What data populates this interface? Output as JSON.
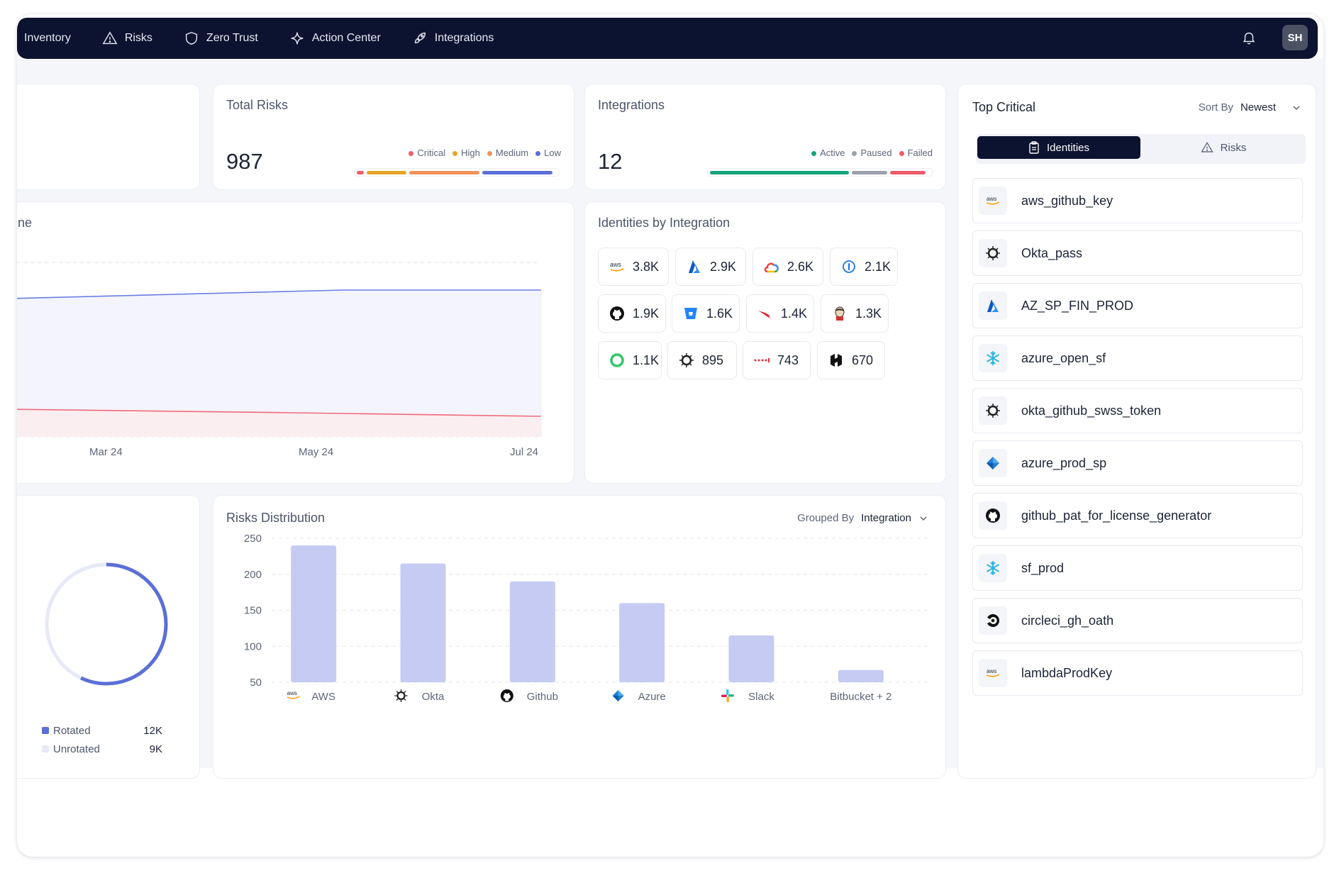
{
  "nav": {
    "items": [
      {
        "label": "Inventory",
        "icon": "none"
      },
      {
        "label": "Risks",
        "icon": "warning-triangle-icon"
      },
      {
        "label": "Zero Trust",
        "icon": "shield-icon"
      },
      {
        "label": "Action Center",
        "icon": "sparkle-icon"
      },
      {
        "label": "Integrations",
        "icon": "rocket-icon"
      }
    ],
    "avatar_initials": "SH",
    "bell_icon": "bell-icon"
  },
  "total_risks": {
    "title": "Total Risks",
    "value": "987",
    "legend": [
      "Critical",
      "High",
      "Medium",
      "Low"
    ],
    "colors": [
      "#ef5b6b",
      "#e4a526",
      "#f0935a",
      "#5b6fd6"
    ]
  },
  "integrations_card": {
    "title": "Integrations",
    "value": "12",
    "legend": [
      "Active",
      "Paused",
      "Failed"
    ],
    "colors": [
      "#14a37f",
      "#9aa0ac",
      "#ef5b6b"
    ]
  },
  "timeline": {
    "title_fragment": "ne",
    "x_labels": [
      "Mar 24",
      "May 24",
      "Jul 24"
    ]
  },
  "identities_by_integration": {
    "title": "Identities by Integration",
    "items": [
      {
        "icon": "aws-icon",
        "value": "3.8K"
      },
      {
        "icon": "azure-icon",
        "value": "2.9K"
      },
      {
        "icon": "google-cloud-icon",
        "value": "2.6K"
      },
      {
        "icon": "onepassword-icon",
        "value": "2.1K"
      },
      {
        "icon": "github-icon",
        "value": "1.9K"
      },
      {
        "icon": "bitbucket-icon",
        "value": "1.6K"
      },
      {
        "icon": "crowdstrike-icon",
        "value": "1.4K"
      },
      {
        "icon": "jenkins-icon",
        "value": "1.3K"
      },
      {
        "icon": "circle-ring-icon",
        "value": "1.1K"
      },
      {
        "icon": "okta-icon",
        "value": "895"
      },
      {
        "icon": "dots-icon",
        "value": "743"
      },
      {
        "icon": "hashicorp-icon",
        "value": "670"
      }
    ]
  },
  "rotation": {
    "legend": [
      {
        "label": "Rotated",
        "value": "12K",
        "color": "#5b6fd6"
      },
      {
        "label": "Unrotated",
        "value": "9K",
        "color": "#e6e9f7"
      }
    ],
    "rotated_fraction": 0.57
  },
  "risks_distribution": {
    "title": "Risks Distribution",
    "grouped_by_label": "Grouped By",
    "grouped_by_value": "Integration"
  },
  "chart_data": {
    "type": "bar",
    "title": "Risks Distribution",
    "categories": [
      "AWS",
      "Okta",
      "Github",
      "Azure",
      "Slack",
      "Bitbucket + 2"
    ],
    "category_icons": [
      "aws-icon",
      "okta-icon",
      "github-icon",
      "azure-icon",
      "slack-icon",
      "none"
    ],
    "values": [
      240,
      215,
      190,
      160,
      115,
      67
    ],
    "yticks": [
      50,
      100,
      150,
      200,
      250
    ],
    "ylim": [
      50,
      250
    ],
    "grid": true,
    "bar_color": "#c5cbf3"
  },
  "top_critical": {
    "title": "Top Critical",
    "sort_label": "Sort By",
    "sort_value": "Newest",
    "tabs": [
      {
        "label": "Identities",
        "icon": "clipboard-icon",
        "active": true
      },
      {
        "label": "Risks",
        "icon": "warning-triangle-icon",
        "active": false
      }
    ],
    "items": [
      {
        "name": "aws_github_key",
        "icon": "aws-icon"
      },
      {
        "name": "Okta_pass",
        "icon": "okta-icon"
      },
      {
        "name": "AZ_SP_FIN_PROD",
        "icon": "azure-icon"
      },
      {
        "name": "azure_open_sf",
        "icon": "snowflake-icon"
      },
      {
        "name": "okta_github_swss_token",
        "icon": "okta-icon"
      },
      {
        "name": "azure_prod_sp",
        "icon": "azure-devops-icon"
      },
      {
        "name": "github_pat_for_license_generator",
        "icon": "github-icon"
      },
      {
        "name": "sf_prod",
        "icon": "snowflake-icon"
      },
      {
        "name": "circleci_gh_oath",
        "icon": "circleci-icon"
      },
      {
        "name": "lambdaProdKey",
        "icon": "aws-icon"
      }
    ]
  }
}
